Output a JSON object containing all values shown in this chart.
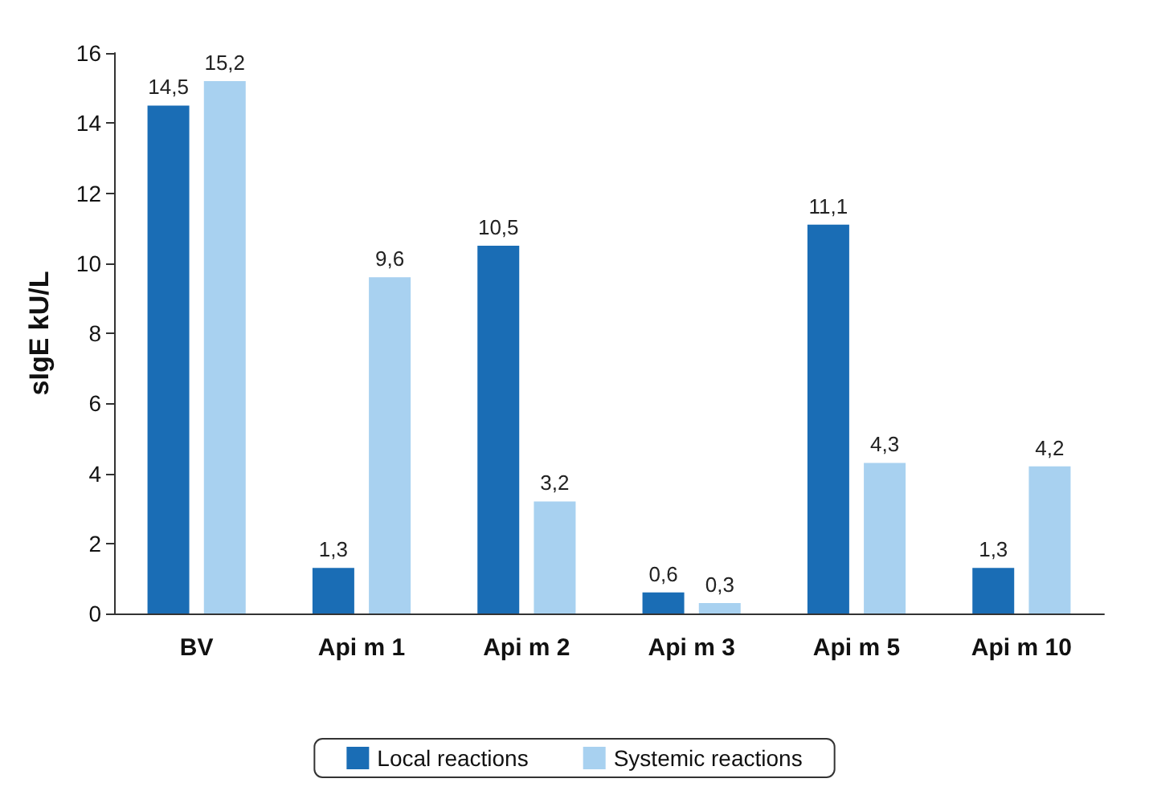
{
  "chart_data": {
    "type": "bar",
    "ylabel": "sIgE kU/L",
    "categories": [
      "BV",
      "Api m 1",
      "Api m 2",
      "Api m 3",
      "Api m 5",
      "Api m 10"
    ],
    "series": [
      {
        "name": "Local reactions",
        "color": "#1a6db5",
        "values": [
          14.5,
          1.3,
          10.5,
          0.6,
          11.1,
          1.3
        ],
        "value_labels": [
          "14,5",
          "1,3",
          "10,5",
          "0,6",
          "11,1",
          "1,3"
        ]
      },
      {
        "name": "Systemic reactions",
        "color": "#a8d1f0",
        "values": [
          15.2,
          9.6,
          3.2,
          0.3,
          4.3,
          4.2
        ],
        "value_labels": [
          "15,2",
          "9,6",
          "3,2",
          "0,3",
          "4,3",
          "4,2"
        ]
      }
    ],
    "ylim": [
      0,
      16
    ],
    "yticks": [
      0,
      2,
      4,
      6,
      8,
      10,
      12,
      14,
      16
    ],
    "grid": false,
    "legend": "bottom"
  }
}
